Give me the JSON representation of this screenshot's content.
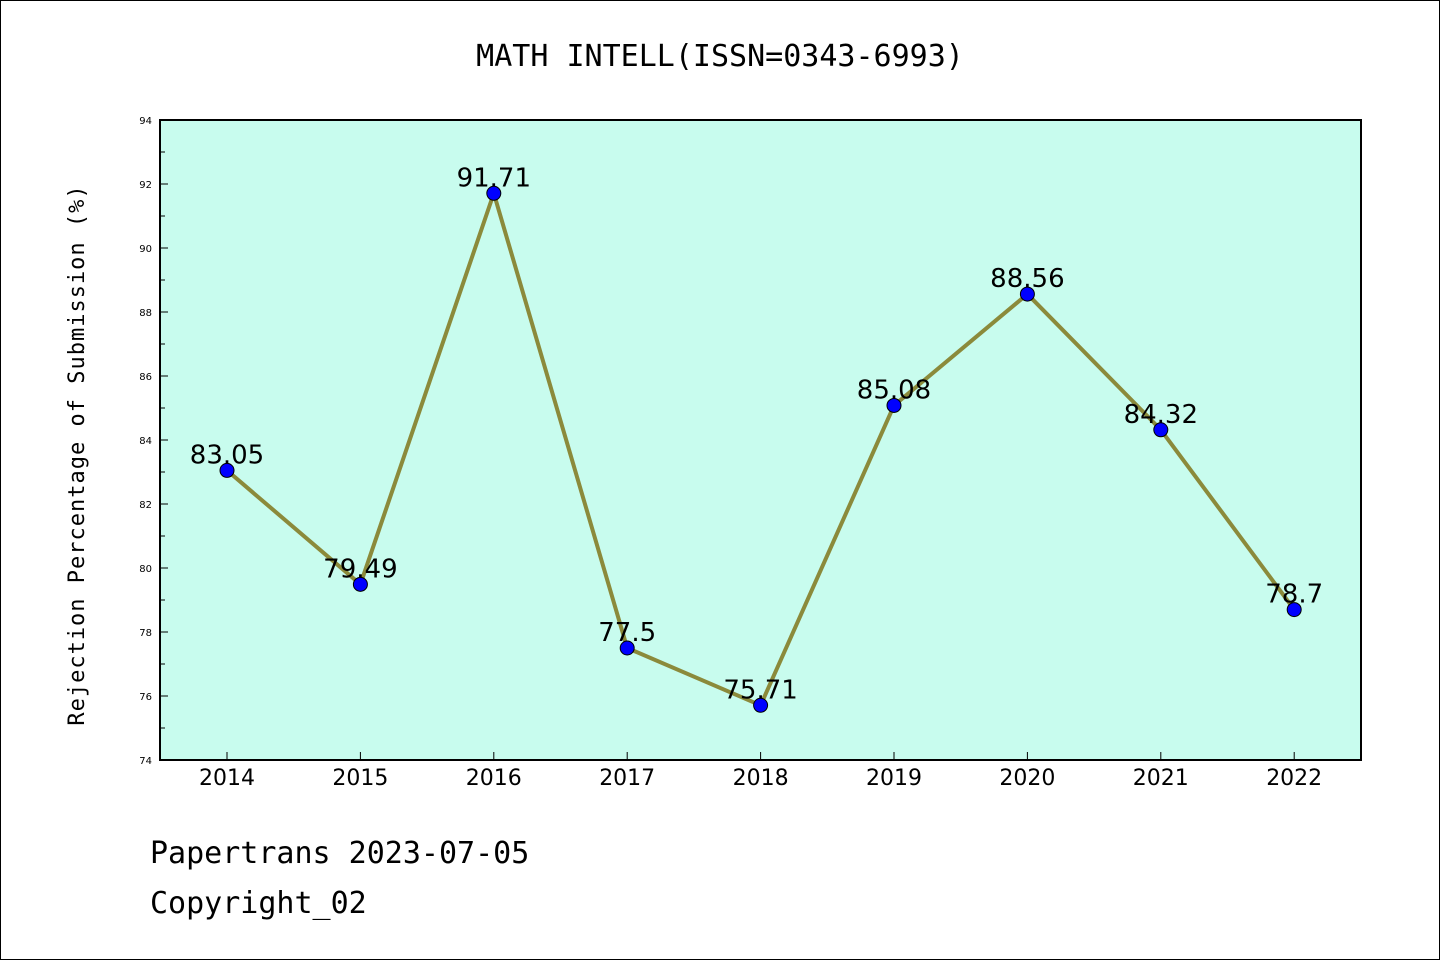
{
  "footer": {
    "line1": "Papertrans 2023-07-05",
    "line2": "Copyright_02"
  },
  "colors": {
    "plot_background": "#c8fcee",
    "line": "#8b8a3b",
    "marker": "#0000ff"
  },
  "chart_data": {
    "type": "line",
    "title": "MATH INTELL(ISSN=0343-6993)",
    "xlabel": "",
    "ylabel": "Rejection Percentage of Submission (%)",
    "categories": [
      "2014",
      "2015",
      "2016",
      "2017",
      "2018",
      "2019",
      "2020",
      "2021",
      "2022"
    ],
    "series": [
      {
        "values": [
          83.05,
          79.49,
          91.71,
          77.5,
          75.71,
          85.08,
          88.56,
          84.32,
          78.7
        ],
        "labels": [
          "83.05",
          "79.49",
          "91.71",
          "77.5",
          "75.71",
          "85.08",
          "88.56",
          "84.32",
          "78.7"
        ]
      }
    ],
    "ylim": [
      74,
      94
    ],
    "yticks": [
      "74",
      "76",
      "78",
      "80",
      "82",
      "84",
      "86",
      "88",
      "90",
      "92",
      "94"
    ],
    "grid": false,
    "legend": "none"
  }
}
